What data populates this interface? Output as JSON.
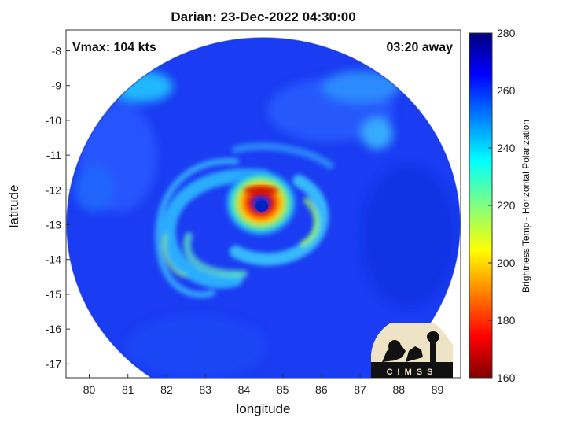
{
  "title": "Darian: 23-Dec-2022 04:30:00",
  "annotations": {
    "vmax": "Vmax: 104 kts",
    "time_away": "03:20 away"
  },
  "axes": {
    "xlabel": "longitude",
    "ylabel": "latitude",
    "xticks": [
      "80",
      "81",
      "82",
      "83",
      "84",
      "85",
      "86",
      "87",
      "88",
      "89"
    ],
    "yticks": [
      "-8",
      "-9",
      "-10",
      "-11",
      "-12",
      "-13",
      "-14",
      "-15",
      "-16",
      "-17"
    ],
    "xlim": [
      79.4,
      89.6
    ],
    "ylim": [
      -17.4,
      -7.4
    ]
  },
  "colorbar": {
    "label": "Brightness Temp - Horizontal Polarization",
    "ticks": [
      "280",
      "260",
      "240",
      "220",
      "200",
      "180",
      "160"
    ],
    "range": [
      160,
      280
    ],
    "colormap": "jet"
  },
  "storm": {
    "eye_longitude": 84.5,
    "eye_latitude": -12.4
  },
  "logo": {
    "text": "CIMSS"
  }
}
